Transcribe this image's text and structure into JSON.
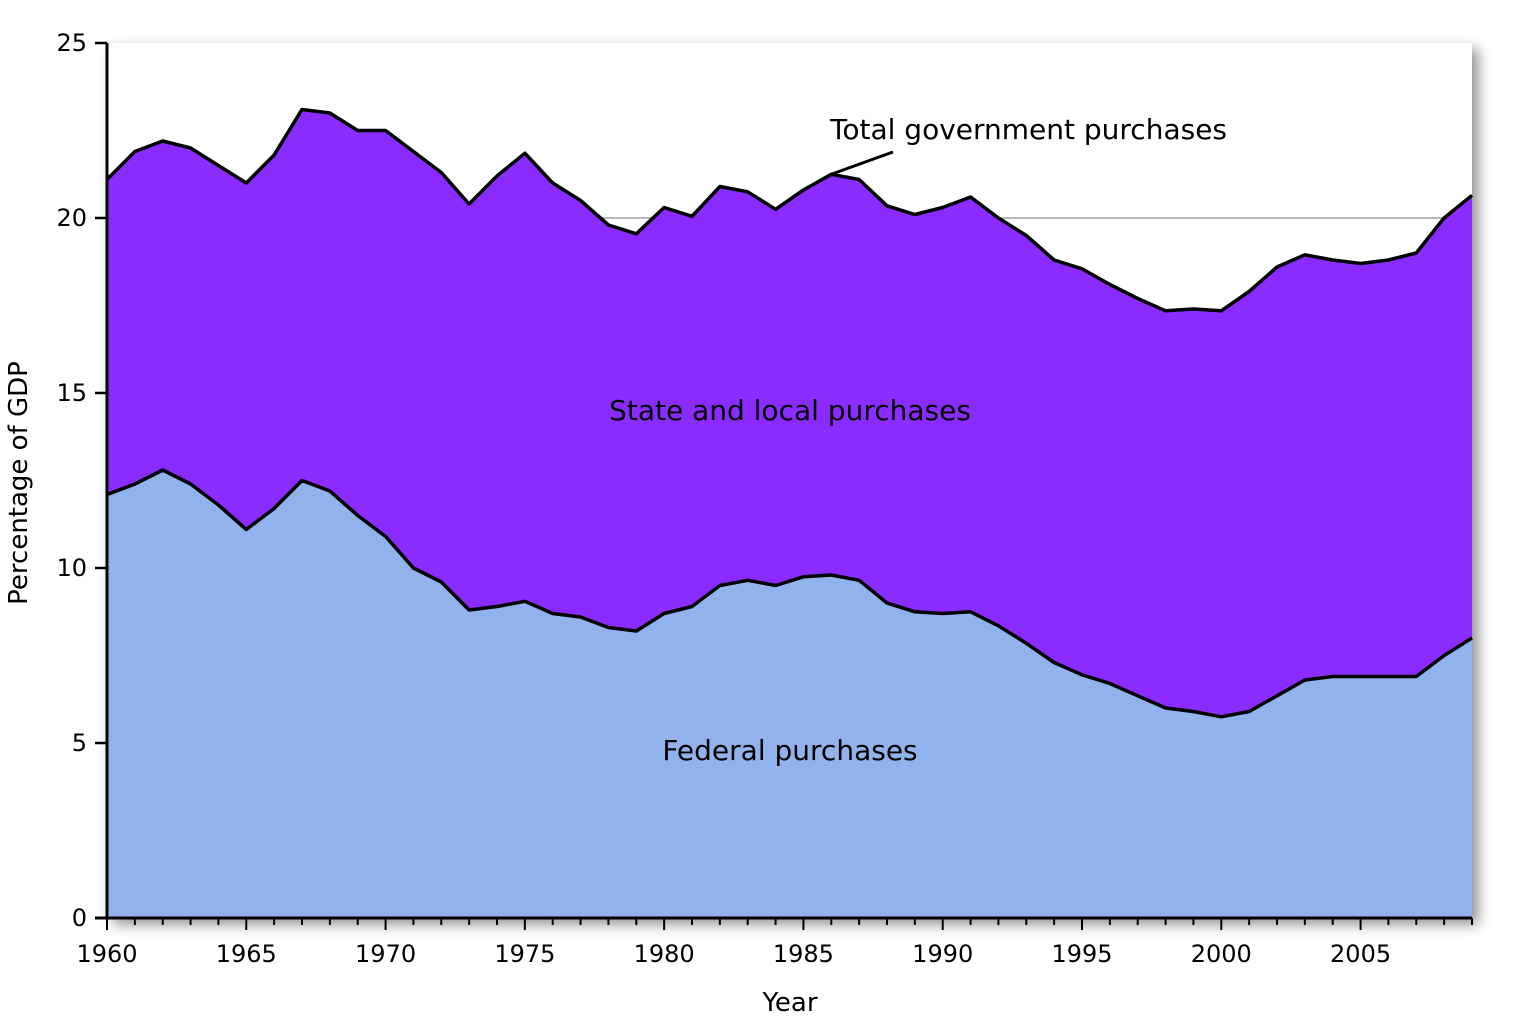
{
  "chart_data": {
    "type": "area",
    "stacked": true,
    "x": [
      1960,
      1961,
      1962,
      1963,
      1964,
      1965,
      1966,
      1967,
      1968,
      1969,
      1970,
      1971,
      1972,
      1973,
      1974,
      1975,
      1976,
      1977,
      1978,
      1979,
      1980,
      1981,
      1982,
      1983,
      1984,
      1985,
      1986,
      1987,
      1988,
      1989,
      1990,
      1991,
      1992,
      1993,
      1994,
      1995,
      1996,
      1997,
      1998,
      1999,
      2000,
      2001,
      2002,
      2003,
      2004,
      2005,
      2006,
      2007,
      2008,
      2009
    ],
    "series": [
      {
        "name": "Federal purchases",
        "color": "#92b2ee",
        "values": [
          12.1,
          12.4,
          12.8,
          12.4,
          11.8,
          11.1,
          11.7,
          12.5,
          12.2,
          11.5,
          10.9,
          10.0,
          9.6,
          8.8,
          8.9,
          9.05,
          8.7,
          8.6,
          8.3,
          8.2,
          8.7,
          8.9,
          9.5,
          9.65,
          9.5,
          9.75,
          9.8,
          9.65,
          9.0,
          8.75,
          8.7,
          8.75,
          8.35,
          7.85,
          7.3,
          6.95,
          6.7,
          6.35,
          6.0,
          5.9,
          5.75,
          5.9,
          6.35,
          6.8,
          6.9,
          6.9,
          6.9,
          6.9,
          7.5,
          8.0
        ]
      },
      {
        "name": "State and local purchases",
        "color": "#8a2bff",
        "values": [
          9.0,
          9.5,
          9.4,
          9.6,
          9.7,
          9.9,
          10.1,
          10.6,
          10.8,
          11.0,
          11.6,
          11.9,
          11.7,
          11.6,
          12.3,
          12.8,
          12.3,
          11.9,
          11.5,
          11.35,
          11.6,
          11.15,
          11.4,
          11.1,
          10.75,
          11.05,
          11.45,
          11.45,
          11.35,
          11.35,
          11.6,
          11.85,
          11.65,
          11.65,
          11.5,
          11.6,
          11.4,
          11.35,
          11.35,
          11.5,
          11.6,
          12.0,
          12.25,
          12.15,
          11.9,
          11.8,
          11.9,
          12.1,
          12.5,
          12.65
        ]
      }
    ],
    "total_label": "Total government purchases",
    "xlabel": "Year",
    "ylabel": "Percentage of GDP",
    "xlim": [
      1960,
      2009
    ],
    "ylim": [
      0,
      25
    ],
    "x_ticks": [
      1960,
      1965,
      1970,
      1975,
      1980,
      1985,
      1990,
      1995,
      2000,
      2005
    ],
    "y_ticks": [
      0,
      5,
      10,
      15,
      20,
      25
    ],
    "reference_line_y": 20,
    "grid": false,
    "legend": "none"
  }
}
